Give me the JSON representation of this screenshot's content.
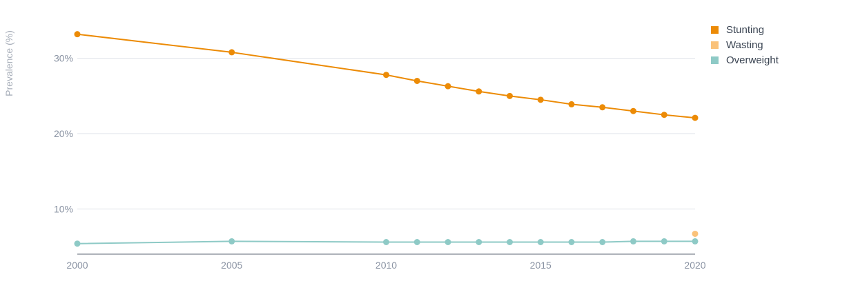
{
  "chart_data": {
    "type": "line",
    "ylabel": "Prevalence (%)",
    "xlabel": "",
    "title": "",
    "x_ticks": [
      "2000",
      "2005",
      "2010",
      "2015",
      "2020"
    ],
    "y_ticks": [
      "10%",
      "20%",
      "30%"
    ],
    "xlim": [
      2000,
      2020
    ],
    "ylim": [
      4,
      35
    ],
    "grid": "horizontal",
    "legend_position": "top-right",
    "series": [
      {
        "name": "Stunting",
        "color": "#ec8b06",
        "x": [
          2000,
          2005,
          2010,
          2011,
          2012,
          2013,
          2014,
          2015,
          2016,
          2017,
          2018,
          2019,
          2020
        ],
        "values": [
          33.2,
          30.8,
          27.8,
          27.0,
          26.3,
          25.6,
          25.0,
          24.5,
          23.9,
          23.5,
          23.0,
          22.5,
          22.1
        ]
      },
      {
        "name": "Wasting",
        "color": "#fac27a",
        "x": [
          2020
        ],
        "values": [
          6.7
        ]
      },
      {
        "name": "Overweight",
        "color": "#8ecac6",
        "x": [
          2000,
          2005,
          2010,
          2011,
          2012,
          2013,
          2014,
          2015,
          2016,
          2017,
          2018,
          2019,
          2020
        ],
        "values": [
          5.4,
          5.7,
          5.6,
          5.6,
          5.6,
          5.6,
          5.6,
          5.6,
          5.6,
          5.6,
          5.7,
          5.7,
          5.7
        ]
      }
    ]
  }
}
